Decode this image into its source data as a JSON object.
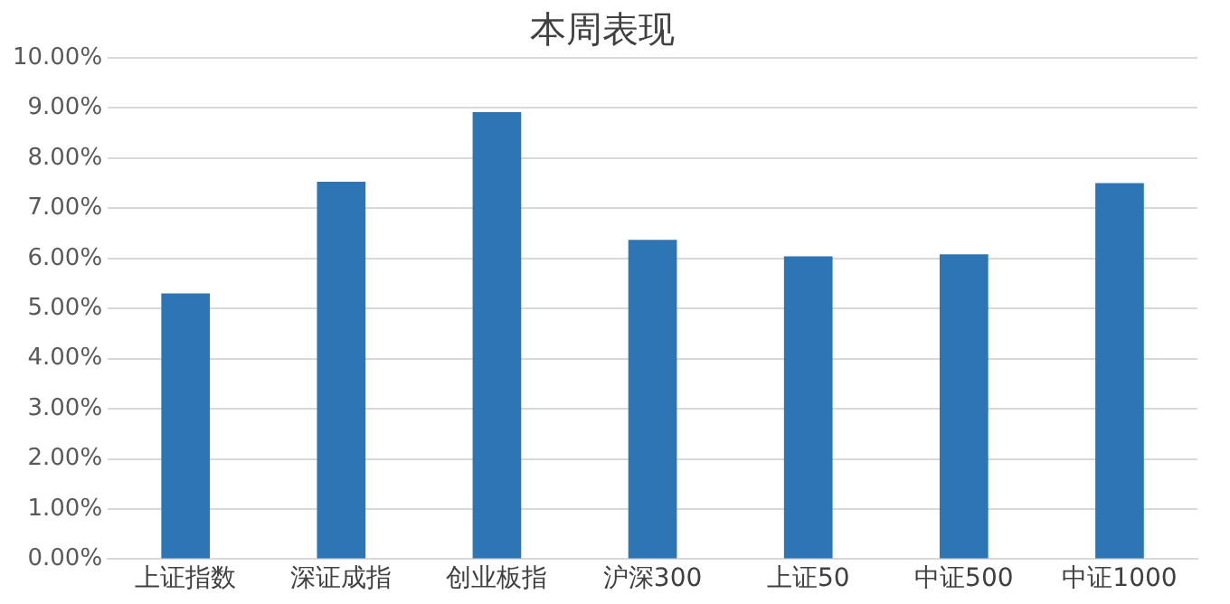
{
  "chart_data": {
    "type": "bar",
    "title": "本周表现",
    "categories": [
      "上证指数",
      "深证成指",
      "创业板指",
      "沪深300",
      "上证50",
      "中证500",
      "中证1000"
    ],
    "values": [
      5.3,
      7.53,
      8.92,
      6.37,
      6.04,
      6.08,
      7.5
    ],
    "color": "#2e75b6",
    "ylim": [
      0,
      10
    ],
    "yticks": [
      {
        "value": 0,
        "label": "0.00%"
      },
      {
        "value": 1,
        "label": "1.00%"
      },
      {
        "value": 2,
        "label": "2.00%"
      },
      {
        "value": 3,
        "label": "3.00%"
      },
      {
        "value": 4,
        "label": "4.00%"
      },
      {
        "value": 5,
        "label": "5.00%"
      },
      {
        "value": 6,
        "label": "6.00%"
      },
      {
        "value": 7,
        "label": "7.00%"
      },
      {
        "value": 8,
        "label": "8.00%"
      },
      {
        "value": 9,
        "label": "9.00%"
      },
      {
        "value": 10,
        "label": "10.00%"
      }
    ],
    "grid": "y",
    "legend": false
  }
}
